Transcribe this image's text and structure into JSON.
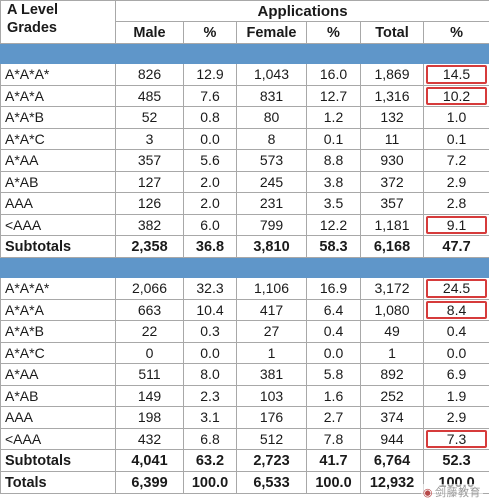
{
  "header": {
    "grades_label": "A Level\nGrades",
    "applications_label": "Applications",
    "columns": [
      "Male",
      "%",
      "Female",
      "%",
      "Total",
      "%"
    ]
  },
  "section1": {
    "rows": [
      {
        "grade": "A*A*A*",
        "cells": [
          "826",
          "12.9",
          "1,043",
          "16.0",
          "1,869",
          "14.5"
        ],
        "highlight": true
      },
      {
        "grade": "A*A*A",
        "cells": [
          "485",
          "7.6",
          "831",
          "12.7",
          "1,316",
          "10.2"
        ],
        "highlight": true
      },
      {
        "grade": "A*A*B",
        "cells": [
          "52",
          "0.8",
          "80",
          "1.2",
          "132",
          "1.0"
        ],
        "highlight": false
      },
      {
        "grade": "A*A*C",
        "cells": [
          "3",
          "0.0",
          "8",
          "0.1",
          "11",
          "0.1"
        ],
        "highlight": false
      },
      {
        "grade": "A*AA",
        "cells": [
          "357",
          "5.6",
          "573",
          "8.8",
          "930",
          "7.2"
        ],
        "highlight": false
      },
      {
        "grade": "A*AB",
        "cells": [
          "127",
          "2.0",
          "245",
          "3.8",
          "372",
          "2.9"
        ],
        "highlight": false
      },
      {
        "grade": "AAA",
        "cells": [
          "126",
          "2.0",
          "231",
          "3.5",
          "357",
          "2.8"
        ],
        "highlight": false
      },
      {
        "grade": "<AAA",
        "cells": [
          "382",
          "6.0",
          "799",
          "12.2",
          "1,181",
          "9.1"
        ],
        "highlight": true
      }
    ],
    "subtotals": {
      "label": "Subtotals",
      "cells": [
        "2,358",
        "36.8",
        "3,810",
        "58.3",
        "6,168",
        "47.7"
      ]
    }
  },
  "section2": {
    "rows": [
      {
        "grade": "A*A*A*",
        "cells": [
          "2,066",
          "32.3",
          "1,106",
          "16.9",
          "3,172",
          "24.5"
        ],
        "highlight": true
      },
      {
        "grade": "A*A*A",
        "cells": [
          "663",
          "10.4",
          "417",
          "6.4",
          "1,080",
          "8.4"
        ],
        "highlight": true
      },
      {
        "grade": "A*A*B",
        "cells": [
          "22",
          "0.3",
          "27",
          "0.4",
          "49",
          "0.4"
        ],
        "highlight": false
      },
      {
        "grade": "A*A*C",
        "cells": [
          "0",
          "0.0",
          "1",
          "0.0",
          "1",
          "0.0"
        ],
        "highlight": false
      },
      {
        "grade": "A*AA",
        "cells": [
          "511",
          "8.0",
          "381",
          "5.8",
          "892",
          "6.9"
        ],
        "highlight": false
      },
      {
        "grade": "A*AB",
        "cells": [
          "149",
          "2.3",
          "103",
          "1.6",
          "252",
          "1.9"
        ],
        "highlight": false
      },
      {
        "grade": "AAA",
        "cells": [
          "198",
          "3.1",
          "176",
          "2.7",
          "374",
          "2.9"
        ],
        "highlight": false
      },
      {
        "grade": "<AAA",
        "cells": [
          "432",
          "6.8",
          "512",
          "7.8",
          "944",
          "7.3"
        ],
        "highlight": true
      }
    ],
    "subtotals": {
      "label": "Subtotals",
      "cells": [
        "4,041",
        "63.2",
        "2,723",
        "41.7",
        "6,764",
        "52.3"
      ]
    }
  },
  "totals": {
    "label": "Totals",
    "cells": [
      "6,399",
      "100.0",
      "6,533",
      "100.0",
      "12,932",
      "100.0"
    ]
  },
  "watermark": {
    "text": "剑藤教育",
    "icon": "logo-icon"
  },
  "colors": {
    "band": "#5f96c9",
    "highlight": "#d63b3b",
    "grid": "#a8a8a8"
  }
}
